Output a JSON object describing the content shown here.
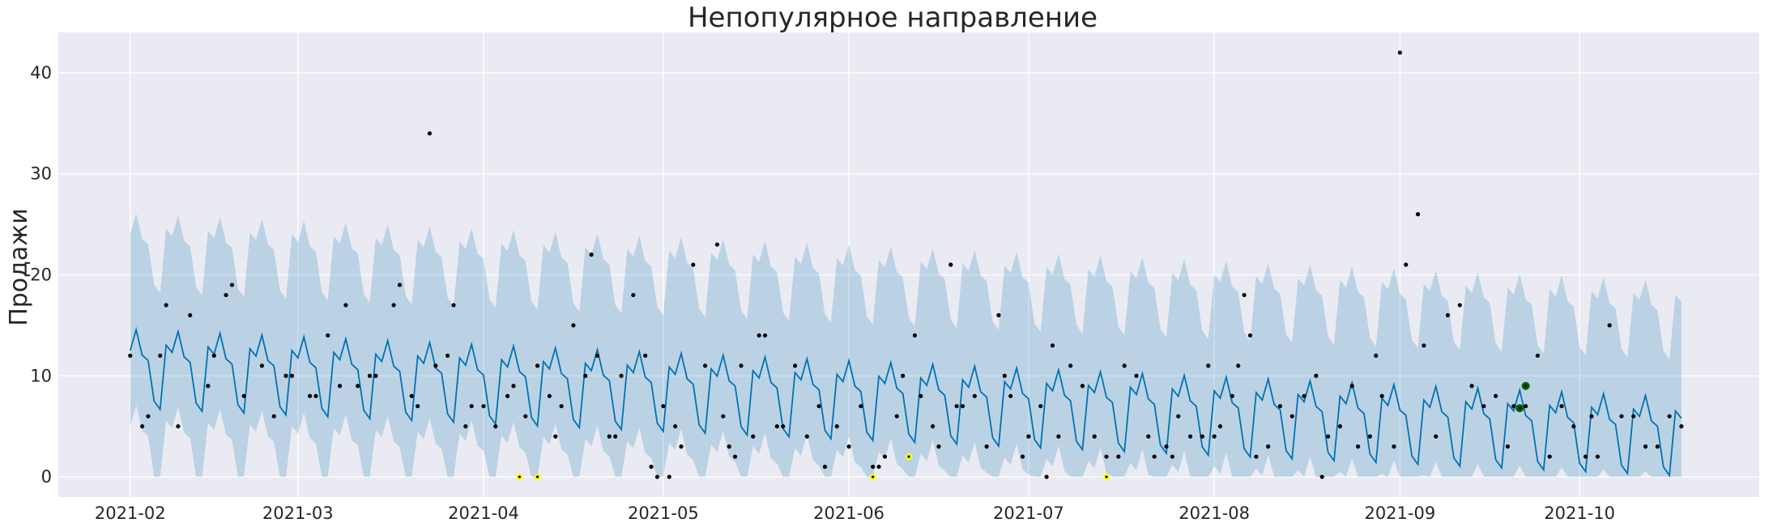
{
  "chart_data": {
    "type": "line",
    "title": "Непопулярное направление",
    "xlabel": "",
    "ylabel": "Продажи",
    "xlim": [
      "2021-01-20",
      "2021-10-31"
    ],
    "ylim": [
      -2,
      44
    ],
    "x_ticks": [
      "2021-02",
      "2021-03",
      "2021-04",
      "2021-05",
      "2021-06",
      "2021-07",
      "2021-08",
      "2021-09",
      "2021-10"
    ],
    "y_ticks": [
      0,
      10,
      20,
      30,
      40
    ],
    "grid": true,
    "forecast": {
      "start": "2021-02-01",
      "end": "2021-10-18",
      "trend_start": 11.2,
      "trend_end": 4.5,
      "weekly_pattern": [
        1.3,
        3.4,
        0.9,
        0.4,
        -3.6,
        -4.4,
        2.0
      ],
      "interval_lower_offset": 7.5,
      "interval_upper_offset": 11.5
    },
    "actuals": [
      [
        "2021-02-01",
        12
      ],
      [
        "2021-02-03",
        5
      ],
      [
        "2021-02-04",
        6
      ],
      [
        "2021-02-06",
        12
      ],
      [
        "2021-02-07",
        17
      ],
      [
        "2021-02-09",
        5
      ],
      [
        "2021-02-11",
        16
      ],
      [
        "2021-02-14",
        9
      ],
      [
        "2021-02-15",
        12
      ],
      [
        "2021-02-17",
        18
      ],
      [
        "2021-02-18",
        19
      ],
      [
        "2021-02-20",
        8
      ],
      [
        "2021-02-23",
        11
      ],
      [
        "2021-02-25",
        6
      ],
      [
        "2021-02-27",
        10
      ],
      [
        "2021-02-28",
        10
      ],
      [
        "2021-03-03",
        8
      ],
      [
        "2021-03-04",
        8
      ],
      [
        "2021-03-06",
        14
      ],
      [
        "2021-03-08",
        9
      ],
      [
        "2021-03-09",
        17
      ],
      [
        "2021-03-11",
        9
      ],
      [
        "2021-03-13",
        10
      ],
      [
        "2021-03-14",
        10
      ],
      [
        "2021-03-17",
        17
      ],
      [
        "2021-03-18",
        19
      ],
      [
        "2021-03-20",
        8
      ],
      [
        "2021-03-21",
        7
      ],
      [
        "2021-03-23",
        34
      ],
      [
        "2021-03-24",
        11
      ],
      [
        "2021-03-26",
        12
      ],
      [
        "2021-03-27",
        17
      ],
      [
        "2021-03-29",
        5
      ],
      [
        "2021-03-30",
        7
      ],
      [
        "2021-04-01",
        7
      ],
      [
        "2021-04-03",
        5
      ],
      [
        "2021-04-05",
        8
      ],
      [
        "2021-04-06",
        9
      ],
      [
        "2021-04-08",
        6
      ],
      [
        "2021-04-10",
        11
      ],
      [
        "2021-04-12",
        8
      ],
      [
        "2021-04-13",
        4
      ],
      [
        "2021-04-14",
        7
      ],
      [
        "2021-04-16",
        15
      ],
      [
        "2021-04-18",
        10
      ],
      [
        "2021-04-19",
        22
      ],
      [
        "2021-04-20",
        12
      ],
      [
        "2021-04-22",
        4
      ],
      [
        "2021-04-23",
        4
      ],
      [
        "2021-04-24",
        10
      ],
      [
        "2021-04-26",
        18
      ],
      [
        "2021-04-28",
        12
      ],
      [
        "2021-04-29",
        1
      ],
      [
        "2021-04-30",
        0
      ],
      [
        "2021-05-01",
        7
      ],
      [
        "2021-05-02",
        0
      ],
      [
        "2021-05-03",
        5
      ],
      [
        "2021-05-04",
        3
      ],
      [
        "2021-05-06",
        21
      ],
      [
        "2021-05-08",
        11
      ],
      [
        "2021-05-10",
        23
      ],
      [
        "2021-05-11",
        6
      ],
      [
        "2021-05-12",
        3
      ],
      [
        "2021-05-13",
        2
      ],
      [
        "2021-05-14",
        11
      ],
      [
        "2021-05-16",
        4
      ],
      [
        "2021-05-17",
        14
      ],
      [
        "2021-05-18",
        14
      ],
      [
        "2021-05-20",
        5
      ],
      [
        "2021-05-21",
        5
      ],
      [
        "2021-05-23",
        11
      ],
      [
        "2021-05-25",
        4
      ],
      [
        "2021-05-27",
        7
      ],
      [
        "2021-05-28",
        1
      ],
      [
        "2021-05-30",
        5
      ],
      [
        "2021-06-01",
        3
      ],
      [
        "2021-06-03",
        7
      ],
      [
        "2021-06-05",
        1
      ],
      [
        "2021-06-06",
        1
      ],
      [
        "2021-06-07",
        2
      ],
      [
        "2021-06-09",
        6
      ],
      [
        "2021-06-10",
        10
      ],
      [
        "2021-06-12",
        14
      ],
      [
        "2021-06-13",
        8
      ],
      [
        "2021-06-15",
        5
      ],
      [
        "2021-06-16",
        3
      ],
      [
        "2021-06-18",
        21
      ],
      [
        "2021-06-19",
        7
      ],
      [
        "2021-06-20",
        7
      ],
      [
        "2021-06-22",
        8
      ],
      [
        "2021-06-24",
        3
      ],
      [
        "2021-06-26",
        16
      ],
      [
        "2021-06-27",
        10
      ],
      [
        "2021-06-28",
        8
      ],
      [
        "2021-06-30",
        2
      ],
      [
        "2021-07-01",
        4
      ],
      [
        "2021-07-03",
        7
      ],
      [
        "2021-07-04",
        0
      ],
      [
        "2021-07-05",
        13
      ],
      [
        "2021-07-06",
        4
      ],
      [
        "2021-07-08",
        11
      ],
      [
        "2021-07-10",
        9
      ],
      [
        "2021-07-12",
        4
      ],
      [
        "2021-07-14",
        2
      ],
      [
        "2021-07-16",
        2
      ],
      [
        "2021-07-17",
        11
      ],
      [
        "2021-07-19",
        10
      ],
      [
        "2021-07-21",
        4
      ],
      [
        "2021-07-22",
        2
      ],
      [
        "2021-07-24",
        3
      ],
      [
        "2021-07-25",
        2
      ],
      [
        "2021-07-26",
        6
      ],
      [
        "2021-07-28",
        4
      ],
      [
        "2021-07-30",
        4
      ],
      [
        "2021-07-31",
        11
      ],
      [
        "2021-08-01",
        4
      ],
      [
        "2021-08-02",
        5
      ],
      [
        "2021-08-04",
        8
      ],
      [
        "2021-08-05",
        11
      ],
      [
        "2021-08-06",
        18
      ],
      [
        "2021-08-07",
        14
      ],
      [
        "2021-08-08",
        2
      ],
      [
        "2021-08-10",
        3
      ],
      [
        "2021-08-12",
        7
      ],
      [
        "2021-08-14",
        6
      ],
      [
        "2021-08-16",
        8
      ],
      [
        "2021-08-18",
        10
      ],
      [
        "2021-08-19",
        0
      ],
      [
        "2021-08-20",
        4
      ],
      [
        "2021-08-22",
        5
      ],
      [
        "2021-08-24",
        9
      ],
      [
        "2021-08-25",
        3
      ],
      [
        "2021-08-27",
        4
      ],
      [
        "2021-08-28",
        12
      ],
      [
        "2021-08-29",
        8
      ],
      [
        "2021-08-31",
        3
      ],
      [
        "2021-09-01",
        42
      ],
      [
        "2021-09-02",
        21
      ],
      [
        "2021-09-04",
        26
      ],
      [
        "2021-09-05",
        13
      ],
      [
        "2021-09-07",
        4
      ],
      [
        "2021-09-09",
        16
      ],
      [
        "2021-09-11",
        17
      ],
      [
        "2021-09-13",
        9
      ],
      [
        "2021-09-15",
        7
      ],
      [
        "2021-09-17",
        8
      ],
      [
        "2021-09-19",
        3
      ],
      [
        "2021-09-20",
        7
      ],
      [
        "2021-09-22",
        7
      ],
      [
        "2021-09-24",
        12
      ],
      [
        "2021-09-26",
        2
      ],
      [
        "2021-09-28",
        7
      ],
      [
        "2021-09-30",
        5
      ],
      [
        "2021-10-02",
        2
      ],
      [
        "2021-10-03",
        6
      ],
      [
        "2021-10-04",
        2
      ],
      [
        "2021-10-06",
        15
      ],
      [
        "2021-10-08",
        6
      ],
      [
        "2021-10-10",
        6
      ],
      [
        "2021-10-12",
        3
      ],
      [
        "2021-10-14",
        3
      ],
      [
        "2021-10-16",
        6
      ],
      [
        "2021-10-18",
        5
      ]
    ],
    "outliers_low": [
      [
        "2021-04-07",
        0
      ],
      [
        "2021-04-10",
        0
      ],
      [
        "2021-06-05",
        0
      ],
      [
        "2021-06-11",
        2
      ],
      [
        "2021-07-14",
        0
      ]
    ],
    "highlights": [
      [
        "2021-09-21",
        6.8
      ],
      [
        "2021-09-22",
        9
      ]
    ],
    "colors": {
      "background": "#eaeaf2",
      "forecast_line": "#0072b2",
      "interval_fill": "#0072b2",
      "actual_points": "#000000",
      "outlier_low": "#ffff00",
      "highlight": "#006400"
    }
  }
}
